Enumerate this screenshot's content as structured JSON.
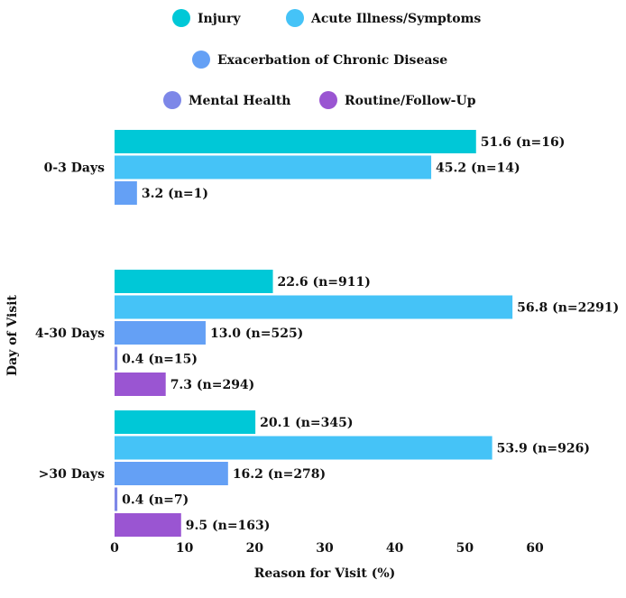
{
  "chart_data": {
    "type": "bar",
    "orientation": "horizontal",
    "xlabel": "Reason for Visit (%)",
    "ylabel": "Day of Visit",
    "xlim": [
      0,
      60
    ],
    "xticks": [
      "0",
      "10",
      "20",
      "30",
      "40",
      "50",
      "60"
    ],
    "legend_position": "top",
    "categories": [
      "0-3 Days",
      "4-30 Days",
      ">30 Days"
    ],
    "series": [
      {
        "name": "Injury",
        "color": "#00c8d7",
        "values": [
          51.6,
          22.6,
          20.1
        ],
        "labels": [
          "51.6 (n=16)",
          "22.6 (n=911)",
          "20.1 (n=345)"
        ]
      },
      {
        "name": "Acute Illness/Symptoms",
        "color": "#45c3f7",
        "values": [
          45.2,
          56.8,
          53.9
        ],
        "labels": [
          "45.2 (n=14)",
          "56.8 (n=2291)",
          "53.9 (n=926)"
        ]
      },
      {
        "name": "Exacerbation of Chronic Disease",
        "color": "#64a0f5",
        "values": [
          3.2,
          13.0,
          16.2
        ],
        "labels": [
          "3.2 (n=1)",
          "13.0 (n=525)",
          "16.2 (n=278)"
        ]
      },
      {
        "name": "Mental Health",
        "color": "#7d87e8",
        "values": [
          null,
          0.4,
          0.4
        ],
        "labels": [
          null,
          "0.4 (n=15)",
          "0.4 (n=7)"
        ]
      },
      {
        "name": "Routine/Follow-Up",
        "color": "#9a55d2",
        "values": [
          null,
          7.3,
          9.5
        ],
        "labels": [
          null,
          "7.3 (n=294)",
          "9.5 (n=163)"
        ]
      }
    ]
  }
}
